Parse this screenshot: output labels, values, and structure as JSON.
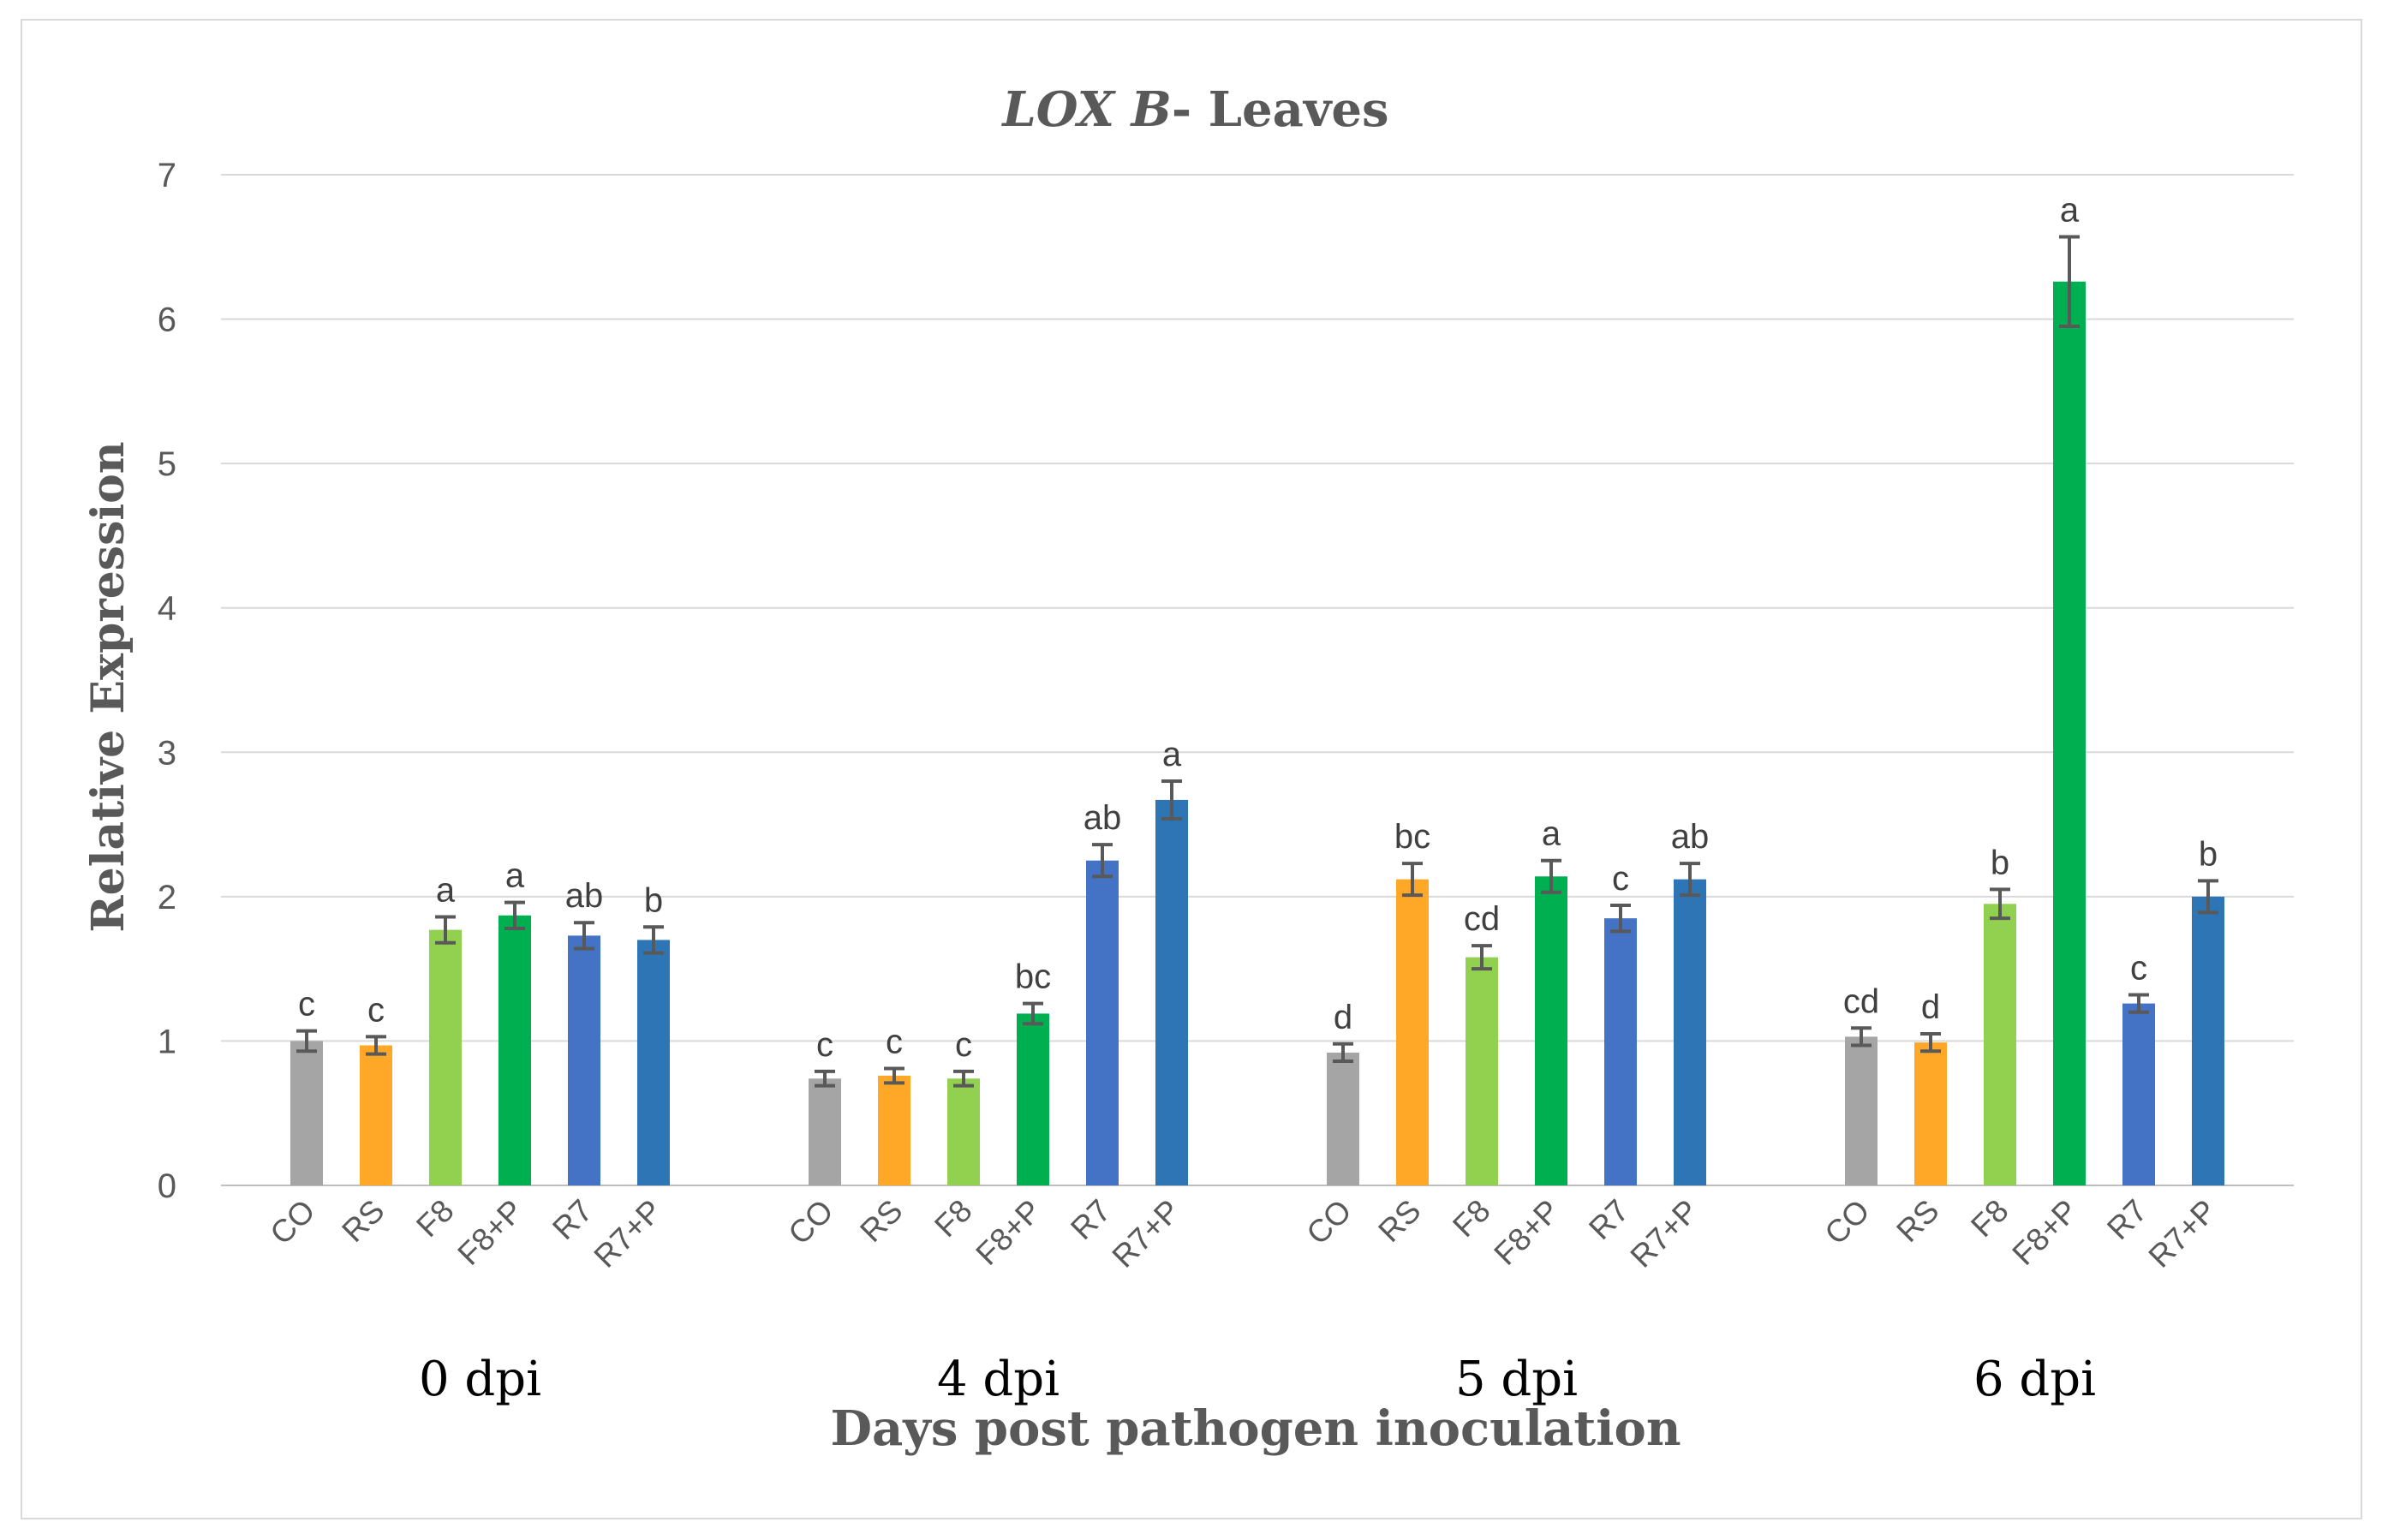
{
  "chart_data": {
    "type": "bar",
    "title_gene": "LOX B",
    "title_rest": "- Leaves",
    "ylabel": "Relative Expression",
    "xlabel": "Days post pathogen inoculation",
    "ylim": [
      0,
      7
    ],
    "yticks": [
      0,
      1,
      2,
      3,
      4,
      5,
      6,
      7
    ],
    "grid": true,
    "legend": "none",
    "treatments": [
      "CO",
      "RS",
      "F8",
      "F8+P",
      "R7",
      "R7+P"
    ],
    "colors": [
      "#a5a5a5",
      "#ffa726",
      "#92d050",
      "#00b050",
      "#4472c4",
      "#2e75b6"
    ],
    "groups": [
      {
        "label": "0 dpi",
        "values": [
          1.0,
          0.97,
          1.77,
          1.87,
          1.73,
          1.7
        ],
        "errors": [
          0.07,
          0.06,
          0.09,
          0.09,
          0.09,
          0.09
        ],
        "sig": [
          "c",
          "c",
          "a",
          "a",
          "ab",
          "b"
        ]
      },
      {
        "label": "4 dpi",
        "values": [
          0.74,
          0.76,
          0.74,
          1.19,
          2.25,
          2.67
        ],
        "errors": [
          0.05,
          0.05,
          0.05,
          0.07,
          0.11,
          0.13
        ],
        "sig": [
          "c",
          "c",
          "c",
          "bc",
          "ab",
          "a"
        ]
      },
      {
        "label": "5 dpi",
        "values": [
          0.92,
          2.12,
          1.58,
          2.14,
          1.85,
          2.12
        ],
        "errors": [
          0.06,
          0.11,
          0.08,
          0.11,
          0.09,
          0.11
        ],
        "sig": [
          "d",
          "bc",
          "cd",
          "a",
          "c",
          "ab"
        ]
      },
      {
        "label": "6 dpi",
        "values": [
          1.03,
          0.99,
          1.95,
          6.26,
          1.26,
          2.0
        ],
        "errors": [
          0.06,
          0.06,
          0.1,
          0.31,
          0.06,
          0.11
        ],
        "sig": [
          "cd",
          "d",
          "b",
          "a",
          "c",
          "b"
        ]
      }
    ]
  }
}
